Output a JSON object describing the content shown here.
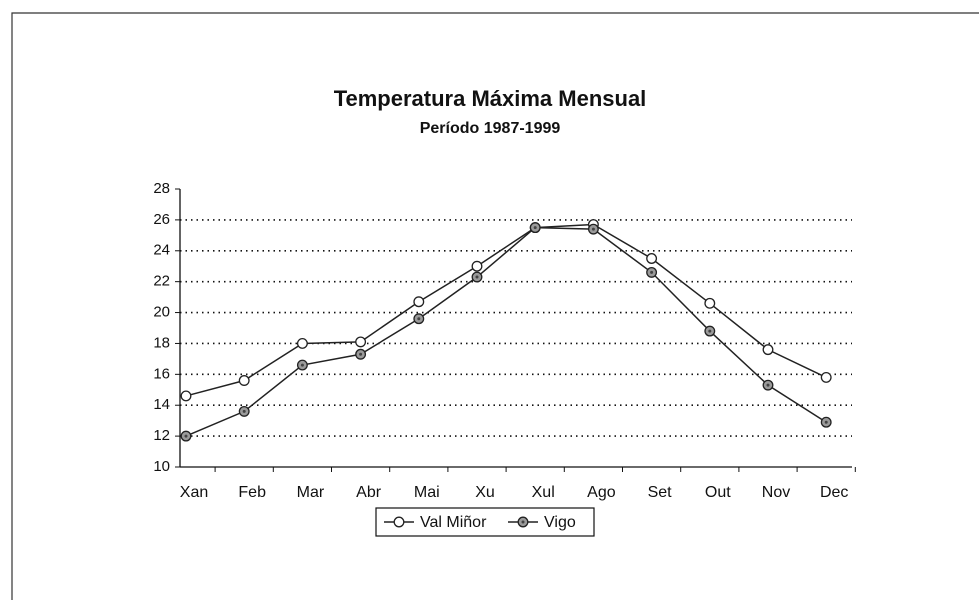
{
  "chart_data": {
    "type": "line",
    "title": "Temperatura Máxima Mensual",
    "subtitle": "Período 1987-1999",
    "categories": [
      "Xan",
      "Feb",
      "Mar",
      "Abr",
      "Mai",
      "Xu",
      "Xul",
      "Ago",
      "Set",
      "Out",
      "Nov",
      "Dec"
    ],
    "series": [
      {
        "name": "Val Miñor",
        "color": "#222222",
        "marker_fill": "#ffffff",
        "values": [
          14.6,
          15.6,
          18.0,
          18.1,
          20.7,
          23.0,
          25.5,
          25.7,
          23.5,
          20.6,
          17.6,
          15.8
        ]
      },
      {
        "name": "Vigo",
        "color": "#222222",
        "marker_fill": "#9a9a9a",
        "values": [
          12.0,
          13.6,
          16.6,
          17.3,
          19.6,
          22.3,
          25.5,
          25.4,
          22.6,
          18.8,
          15.3,
          12.9
        ]
      }
    ],
    "ylim": [
      10,
      28
    ],
    "yticks": [
      10,
      12,
      14,
      16,
      18,
      20,
      22,
      24,
      26,
      28
    ],
    "grid": true,
    "legend": "bottom"
  }
}
